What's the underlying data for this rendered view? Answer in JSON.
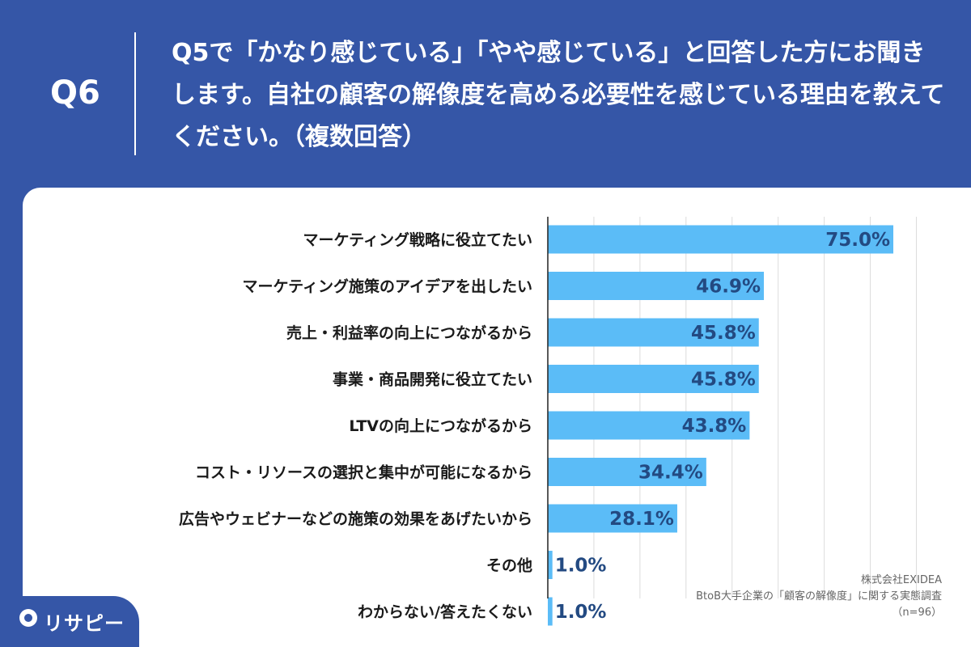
{
  "header": {
    "q_label": "Q6",
    "question": "Q5で「かなり感じている」「やや感じている」と回答した方にお聞きします。自社の顧客の解像度を高める必要性を感じている理由を教えてください。（複数回答）"
  },
  "chart_data": {
    "type": "bar",
    "orientation": "horizontal",
    "categories": [
      "マーケティング戦略に役立てたい",
      "マーケティング施策のアイデアを出したい",
      "売上・利益率の向上につながるから",
      "事業・商品開発に役立てたい",
      "LTVの向上につながるから",
      "コスト・リソースの選択と集中が可能になるから",
      "広告やウェビナーなどの施策の効果をあげたいから",
      "その他",
      "わからない/答えたくない"
    ],
    "values": [
      75.0,
      46.9,
      45.8,
      45.8,
      43.8,
      34.4,
      28.1,
      1.0,
      1.0
    ],
    "value_labels": [
      "75.0%",
      "46.9%",
      "45.8%",
      "45.8%",
      "43.8%",
      "34.4%",
      "28.1%",
      "1.0%",
      "1.0%"
    ],
    "xlim": [
      0,
      80
    ],
    "grid": true,
    "bar_color": "#5bbcf7"
  },
  "source": {
    "company": "株式会社EXIDEA",
    "survey": "BtoB大手企業の「顧客の解像度」に関する実態調査",
    "n": "（n=96）"
  },
  "logo": {
    "text": "リサピー"
  }
}
